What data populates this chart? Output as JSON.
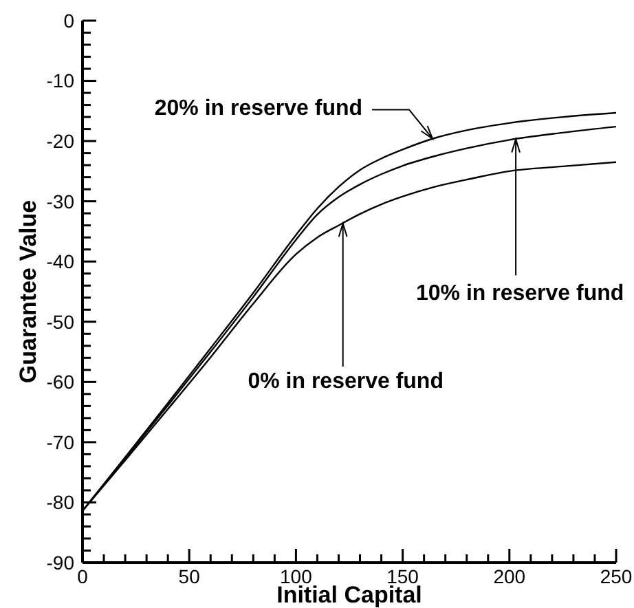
{
  "chart_data": {
    "type": "line",
    "xlabel": "Initial Capital",
    "ylabel": "Guarantee Value",
    "x": [
      0,
      20,
      40,
      60,
      80,
      100,
      110,
      120,
      130,
      140,
      150,
      165,
      180,
      200,
      225,
      250
    ],
    "series": [
      {
        "color": "#000000",
        "values": [
          -81.4,
          -72.5,
          -63.5,
          -54.4,
          -45.2,
          -35.6,
          -31.2,
          -27.6,
          -24.8,
          -22.9,
          -21.4,
          -19.5,
          -18.2,
          -17.0,
          -16.0,
          -15.3
        ]
      },
      {
        "color": "#000000",
        "values": [
          -81.4,
          -72.7,
          -63.9,
          -55.0,
          -45.9,
          -36.4,
          -32.2,
          -29.3,
          -27.2,
          -25.5,
          -24.1,
          -22.5,
          -21.2,
          -19.8,
          -18.6,
          -17.6
        ]
      },
      {
        "color": "#000000",
        "values": [
          -81.4,
          -73.0,
          -64.5,
          -55.9,
          -47.0,
          -38.8,
          -36.0,
          -34.0,
          -32.1,
          -30.5,
          -29.2,
          -27.6,
          -26.4,
          -25.0,
          -24.2,
          -23.5
        ]
      }
    ],
    "xlim": [
      0,
      250
    ],
    "ylim": [
      -90,
      0
    ],
    "xticks": [
      0,
      {
        "value": 10,
        "label": null
      },
      {
        "value": 20,
        "label": null
      },
      {
        "value": 30,
        "label": null
      },
      {
        "value": 40,
        "label": null
      },
      50,
      {
        "value": 60,
        "label": null
      },
      {
        "value": 70,
        "label": null
      },
      {
        "value": 80,
        "label": null
      },
      {
        "value": 90,
        "label": null
      },
      100,
      {
        "value": 110,
        "label": null
      },
      {
        "value": 120,
        "label": null
      },
      {
        "value": 130,
        "label": null
      },
      {
        "value": 140,
        "label": null
      },
      150,
      {
        "value": 160,
        "label": null
      },
      {
        "value": 170,
        "label": null
      },
      {
        "value": 180,
        "label": null
      },
      {
        "value": 190,
        "label": null
      },
      200,
      {
        "value": 210,
        "label": null
      },
      {
        "value": 220,
        "label": null
      },
      {
        "value": 230,
        "label": null
      },
      {
        "value": 240,
        "label": null
      },
      250
    ],
    "yticks": [
      -90,
      {
        "value": -88,
        "label": null
      },
      {
        "value": -86,
        "label": null
      },
      {
        "value": -84,
        "label": null
      },
      {
        "value": -82,
        "label": null
      },
      -80,
      {
        "value": -78,
        "label": null
      },
      {
        "value": -76,
        "label": null
      },
      {
        "value": -74,
        "label": null
      },
      {
        "value": -72,
        "label": null
      },
      -70,
      {
        "value": -68,
        "label": null
      },
      {
        "value": -66,
        "label": null
      },
      {
        "value": -64,
        "label": null
      },
      {
        "value": -62,
        "label": null
      },
      -60,
      {
        "value": -58,
        "label": null
      },
      {
        "value": -56,
        "label": null
      },
      {
        "value": -54,
        "label": null
      },
      {
        "value": -52,
        "label": null
      },
      -50,
      {
        "value": -48,
        "label": null
      },
      {
        "value": -46,
        "label": null
      },
      {
        "value": -44,
        "label": null
      },
      {
        "value": -42,
        "label": null
      },
      -40,
      {
        "value": -38,
        "label": null
      },
      {
        "value": -36,
        "label": null
      },
      {
        "value": -34,
        "label": null
      },
      {
        "value": -32,
        "label": null
      },
      -30,
      {
        "value": -28,
        "label": null
      },
      {
        "value": -26,
        "label": null
      },
      {
        "value": -24,
        "label": null
      },
      {
        "value": -22,
        "label": null
      },
      -20,
      {
        "value": -18,
        "label": null
      },
      {
        "value": -16,
        "label": null
      },
      {
        "value": -14,
        "label": null
      },
      {
        "value": -12,
        "label": null
      },
      -10,
      {
        "value": -8,
        "label": null
      },
      {
        "value": -6,
        "label": null
      },
      {
        "value": -4,
        "label": null
      },
      {
        "value": -2,
        "label": null
      },
      0
    ],
    "annotations": [
      {
        "text": "20% in reserve fund",
        "x": 164,
        "y": -19.6
      },
      {
        "text": "10% in reserve fund",
        "x": 203,
        "y": -19.7
      },
      {
        "text": "0% in reserve fund",
        "x": 122,
        "y": -33.7
      }
    ]
  }
}
